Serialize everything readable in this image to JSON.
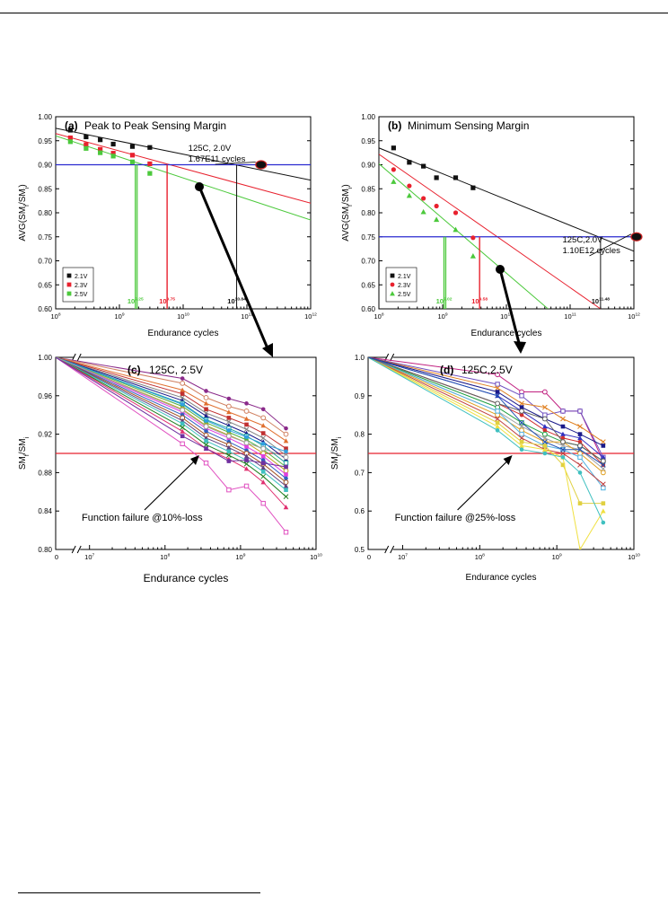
{
  "colors": {
    "black": "#111111",
    "red": "#e8212e",
    "green": "#4cc93c",
    "blue": "#2a2ad0"
  },
  "chart_data": [
    {
      "id": "a",
      "type": "scatter",
      "label": "(a)",
      "title": "Peak to Peak Sensing Margin",
      "xlabel": "Endurance cycles",
      "ylabel": "AVG(SM",
      "ylabel_sub1": "f",
      "ylabel_mid": "/SM",
      "ylabel_sub2": "i",
      "ylabel_end": ")",
      "xscale": "log",
      "xlim": [
        100000000,
        1000000000000
      ],
      "ylim": [
        0.6,
        1.0
      ],
      "x_ticks": [
        {
          "base": "10",
          "exp": "8",
          "v": 100000000.0
        },
        {
          "base": "10",
          "exp": "9",
          "v": 1000000000.0
        },
        {
          "base": "10",
          "exp": "10",
          "v": 10000000000.0
        },
        {
          "base": "10",
          "exp": "11",
          "v": 100000000000.0
        },
        {
          "base": "10",
          "exp": "12",
          "v": 1000000000000.0
        }
      ],
      "y_ticks": [
        "0.60",
        "0.65",
        "0.70",
        "0.75",
        "0.80",
        "0.85",
        "0.90",
        "0.95",
        "1.00"
      ],
      "threshold": 0.9,
      "legend": "bottom-left",
      "series": [
        {
          "name": "2.1V",
          "color": "black",
          "marker": "square",
          "x": [
            170000000.0,
            300000000.0,
            500000000.0,
            800000000.0,
            1600000000.0,
            3000000000.0
          ],
          "y": [
            0.972,
            0.958,
            0.952,
            0.943,
            0.938,
            0.936
          ],
          "fit": [
            [
              100000000.0,
              0.976
            ],
            [
              1000000000000.0,
              0.868
            ]
          ]
        },
        {
          "name": "2.3V",
          "color": "red",
          "marker": "square",
          "x": [
            170000000.0,
            300000000.0,
            500000000.0,
            800000000.0,
            1600000000.0,
            3000000000.0
          ],
          "y": [
            0.956,
            0.942,
            0.932,
            0.924,
            0.92,
            0.902
          ],
          "fit": [
            [
              100000000.0,
              0.965
            ],
            [
              1000000000000.0,
              0.82
            ]
          ]
        },
        {
          "name": "2.5V",
          "color": "green",
          "marker": "square",
          "x": [
            170000000.0,
            300000000.0,
            500000000.0,
            800000000.0,
            1600000000.0,
            3000000000.0
          ],
          "y": [
            0.948,
            0.934,
            0.925,
            0.918,
            0.906,
            0.882
          ],
          "fit": [
            [
              100000000.0,
              0.96
            ],
            [
              1000000000000.0,
              0.785
            ]
          ]
        }
      ],
      "markers": [
        {
          "label_base": "10",
          "label_exp": "9.25",
          "x": 1780000000.0,
          "color": "green"
        },
        {
          "label_base": "10",
          "label_exp": "9.75",
          "x": 5600000000.0,
          "color": "red"
        },
        {
          "label_base": "10",
          "label_exp": "10.84",
          "x": 69000000000.0,
          "color": "black"
        }
      ],
      "annotation": {
        "line1": "125C, 2.0V",
        "line2": "1.67E11 cycles",
        "x": 167000000000.0,
        "y": 0.9
      }
    },
    {
      "id": "b",
      "type": "scatter",
      "label": "(b)",
      "title": "Minimum Sensing Margin",
      "xlabel": "Endurance cycles",
      "ylabel": "AVG(SM",
      "ylabel_sub1": "f",
      "ylabel_mid": "/SM",
      "ylabel_sub2": "i",
      "ylabel_end": ")",
      "xscale": "log",
      "xlim": [
        100000000,
        1000000000000
      ],
      "ylim": [
        0.6,
        1.0
      ],
      "x_ticks": [
        {
          "base": "10",
          "exp": "8",
          "v": 100000000.0
        },
        {
          "base": "10",
          "exp": "9",
          "v": 1000000000.0
        },
        {
          "base": "10",
          "exp": "10",
          "v": 10000000000.0
        },
        {
          "base": "10",
          "exp": "11",
          "v": 100000000000.0
        },
        {
          "base": "10",
          "exp": "12",
          "v": 1000000000000.0
        }
      ],
      "y_ticks": [
        "0.60",
        "0.65",
        "0.70",
        "0.75",
        "0.80",
        "0.85",
        "0.90",
        "0.95",
        "1.00"
      ],
      "threshold": 0.75,
      "legend": "bottom-left",
      "series": [
        {
          "name": "2.1V",
          "color": "black",
          "marker": "square",
          "x": [
            170000000.0,
            300000000.0,
            500000000.0,
            800000000.0,
            1600000000.0,
            3000000000.0
          ],
          "y": [
            0.935,
            0.905,
            0.897,
            0.873,
            0.873,
            0.852
          ],
          "fit": [
            [
              100000000.0,
              0.935
            ],
            [
              1000000000000.0,
              0.72
            ]
          ]
        },
        {
          "name": "2.3V",
          "color": "red",
          "marker": "circle",
          "x": [
            170000000.0,
            300000000.0,
            500000000.0,
            800000000.0,
            1600000000.0,
            3000000000.0
          ],
          "y": [
            0.89,
            0.856,
            0.83,
            0.814,
            0.8,
            0.748
          ],
          "fit": [
            [
              100000000.0,
              0.922
            ],
            [
              300000000000.0,
              0.6
            ]
          ]
        },
        {
          "name": "2.5V",
          "color": "green",
          "marker": "triangle",
          "x": [
            170000000.0,
            300000000.0,
            500000000.0,
            800000000.0,
            1600000000.0,
            3000000000.0
          ],
          "y": [
            0.865,
            0.836,
            0.802,
            0.786,
            0.765,
            0.71
          ],
          "fit": [
            [
              100000000.0,
              0.902
            ],
            [
              45000000000.0,
              0.6
            ]
          ]
        }
      ],
      "markers": [
        {
          "label_base": "10",
          "label_exp": "9.02",
          "x": 1050000000.0,
          "color": "green"
        },
        {
          "label_base": "10",
          "label_exp": "9.58",
          "x": 3800000000.0,
          "color": "red"
        },
        {
          "label_base": "10",
          "label_exp": "11.48",
          "x": 300000000000.0,
          "color": "black"
        }
      ],
      "annotation": {
        "line1": "125C,2.0V",
        "line2": "1.10E12 cycles",
        "x": 1100000000000.0,
        "y": 0.75
      }
    },
    {
      "id": "c",
      "type": "line",
      "label": "(c)",
      "title": "125C, 2.5V",
      "xlabel": "Endurance cycles",
      "ylabel": "SM",
      "ylabel_sub1": "f",
      "ylabel_mid": "/SM",
      "ylabel_sub2": "i",
      "ylabel_end": "",
      "xscale": "log-broken",
      "y_ticks": [
        "0.80",
        "0.84",
        "0.88",
        "0.92",
        "0.96",
        "1.00"
      ],
      "ylim": [
        0.8,
        1.0
      ],
      "x_ticks": [
        {
          "base": "0",
          "exp": ""
        },
        {
          "base": "10",
          "exp": "7"
        },
        {
          "base": "10",
          "exp": "8"
        },
        {
          "base": "10",
          "exp": "9"
        },
        {
          "base": "10",
          "exp": "10"
        }
      ],
      "threshold": 0.9,
      "failure_text": "Function failure @10%-loss",
      "x_points": [
        0,
        170000000.0,
        350000000.0,
        700000000.0,
        1200000000.0,
        2000000000.0,
        4000000000.0
      ],
      "series_end_values": [
        0.926,
        0.92,
        0.913,
        0.905,
        0.898,
        0.894,
        0.89,
        0.886,
        0.882,
        0.878,
        0.874,
        0.87,
        0.866,
        0.862,
        0.855,
        0.844,
        0.818,
        0.902,
        0.896,
        0.886
      ],
      "series_drops": [
        [
          0.978,
          0.965,
          0.957,
          0.952,
          0.946
        ],
        [
          0.973,
          0.958,
          0.949,
          0.944,
          0.937
        ],
        [
          0.966,
          0.952,
          0.943,
          0.936,
          0.929
        ],
        [
          0.962,
          0.946,
          0.937,
          0.93,
          0.921
        ],
        [
          0.958,
          0.942,
          0.933,
          0.925,
          0.916
        ],
        [
          0.955,
          0.939,
          0.929,
          0.921,
          0.912
        ],
        [
          0.952,
          0.935,
          0.926,
          0.918,
          0.908
        ],
        [
          0.949,
          0.932,
          0.922,
          0.914,
          0.904
        ],
        [
          0.946,
          0.929,
          0.919,
          0.911,
          0.9
        ],
        [
          0.943,
          0.926,
          0.916,
          0.907,
          0.897
        ],
        [
          0.94,
          0.923,
          0.912,
          0.903,
          0.893
        ],
        [
          0.937,
          0.919,
          0.909,
          0.9,
          0.889
        ],
        [
          0.934,
          0.916,
          0.906,
          0.897,
          0.885
        ],
        [
          0.931,
          0.913,
          0.902,
          0.893,
          0.881
        ],
        [
          0.927,
          0.909,
          0.898,
          0.889,
          0.876
        ],
        [
          0.923,
          0.905,
          0.894,
          0.884,
          0.87
        ],
        [
          0.91,
          0.89,
          0.862,
          0.866,
          0.848
        ],
        [
          0.951,
          0.934,
          0.924,
          0.917,
          0.91
        ],
        [
          0.945,
          0.928,
          0.918,
          0.911,
          0.905
        ],
        [
          0.918,
          0.905,
          0.892,
          0.893,
          0.89
        ]
      ]
    },
    {
      "id": "d",
      "type": "line",
      "label": "(d)",
      "title": "125C,2.5V",
      "xlabel": "Endurance cycles",
      "ylabel": "SM",
      "ylabel_sub1": "f",
      "ylabel_mid": "/SM",
      "ylabel_sub2": "i",
      "ylabel_end": "",
      "xscale": "log-broken",
      "y_ticks": [
        "0.5",
        "0.6",
        "0.7",
        "0.8",
        "0.9",
        "1.0"
      ],
      "ylim": [
        0.5,
        1.0
      ],
      "x_ticks": [
        {
          "base": "0",
          "exp": ""
        },
        {
          "base": "10",
          "exp": "7"
        },
        {
          "base": "10",
          "exp": "8"
        },
        {
          "base": "10",
          "exp": "9"
        },
        {
          "base": "10",
          "exp": "10"
        }
      ],
      "threshold": 0.75,
      "failure_text": "Function failure @25%-loss",
      "x_points": [
        0,
        170000000.0,
        350000000.0,
        700000000.0,
        1200000000.0,
        2000000000.0,
        4000000000.0
      ],
      "series_drops": [
        [
          0.955,
          0.91,
          0.91,
          0.86,
          0.86,
          0.73
        ],
        [
          0.93,
          0.9,
          0.85,
          0.86,
          0.86,
          0.74
        ],
        [
          0.92,
          0.88,
          0.87,
          0.84,
          0.82,
          0.78
        ],
        [
          0.91,
          0.87,
          0.84,
          0.82,
          0.8,
          0.77
        ],
        [
          0.9,
          0.86,
          0.82,
          0.8,
          0.79,
          0.74
        ],
        [
          0.88,
          0.85,
          0.81,
          0.79,
          0.78,
          0.72
        ],
        [
          0.87,
          0.83,
          0.8,
          0.78,
          0.77,
          0.73
        ],
        [
          0.86,
          0.82,
          0.79,
          0.77,
          0.76,
          0.71
        ],
        [
          0.85,
          0.81,
          0.78,
          0.78,
          0.75,
          0.7
        ],
        [
          0.86,
          0.8,
          0.77,
          0.76,
          0.74,
          0.66
        ],
        [
          0.84,
          0.79,
          0.76,
          0.75,
          0.72,
          0.67
        ],
        [
          0.83,
          0.78,
          0.77,
          0.72,
          0.62,
          0.62
        ],
        [
          0.82,
          0.77,
          0.76,
          0.74,
          0.5,
          0.6
        ],
        [
          0.81,
          0.76,
          0.75,
          0.74,
          0.7,
          0.57
        ],
        [
          0.88,
          0.86,
          0.84,
          0.78,
          0.77,
          0.73
        ],
        [
          0.9,
          0.83,
          0.78,
          0.76,
          0.76,
          0.72
        ]
      ]
    }
  ]
}
